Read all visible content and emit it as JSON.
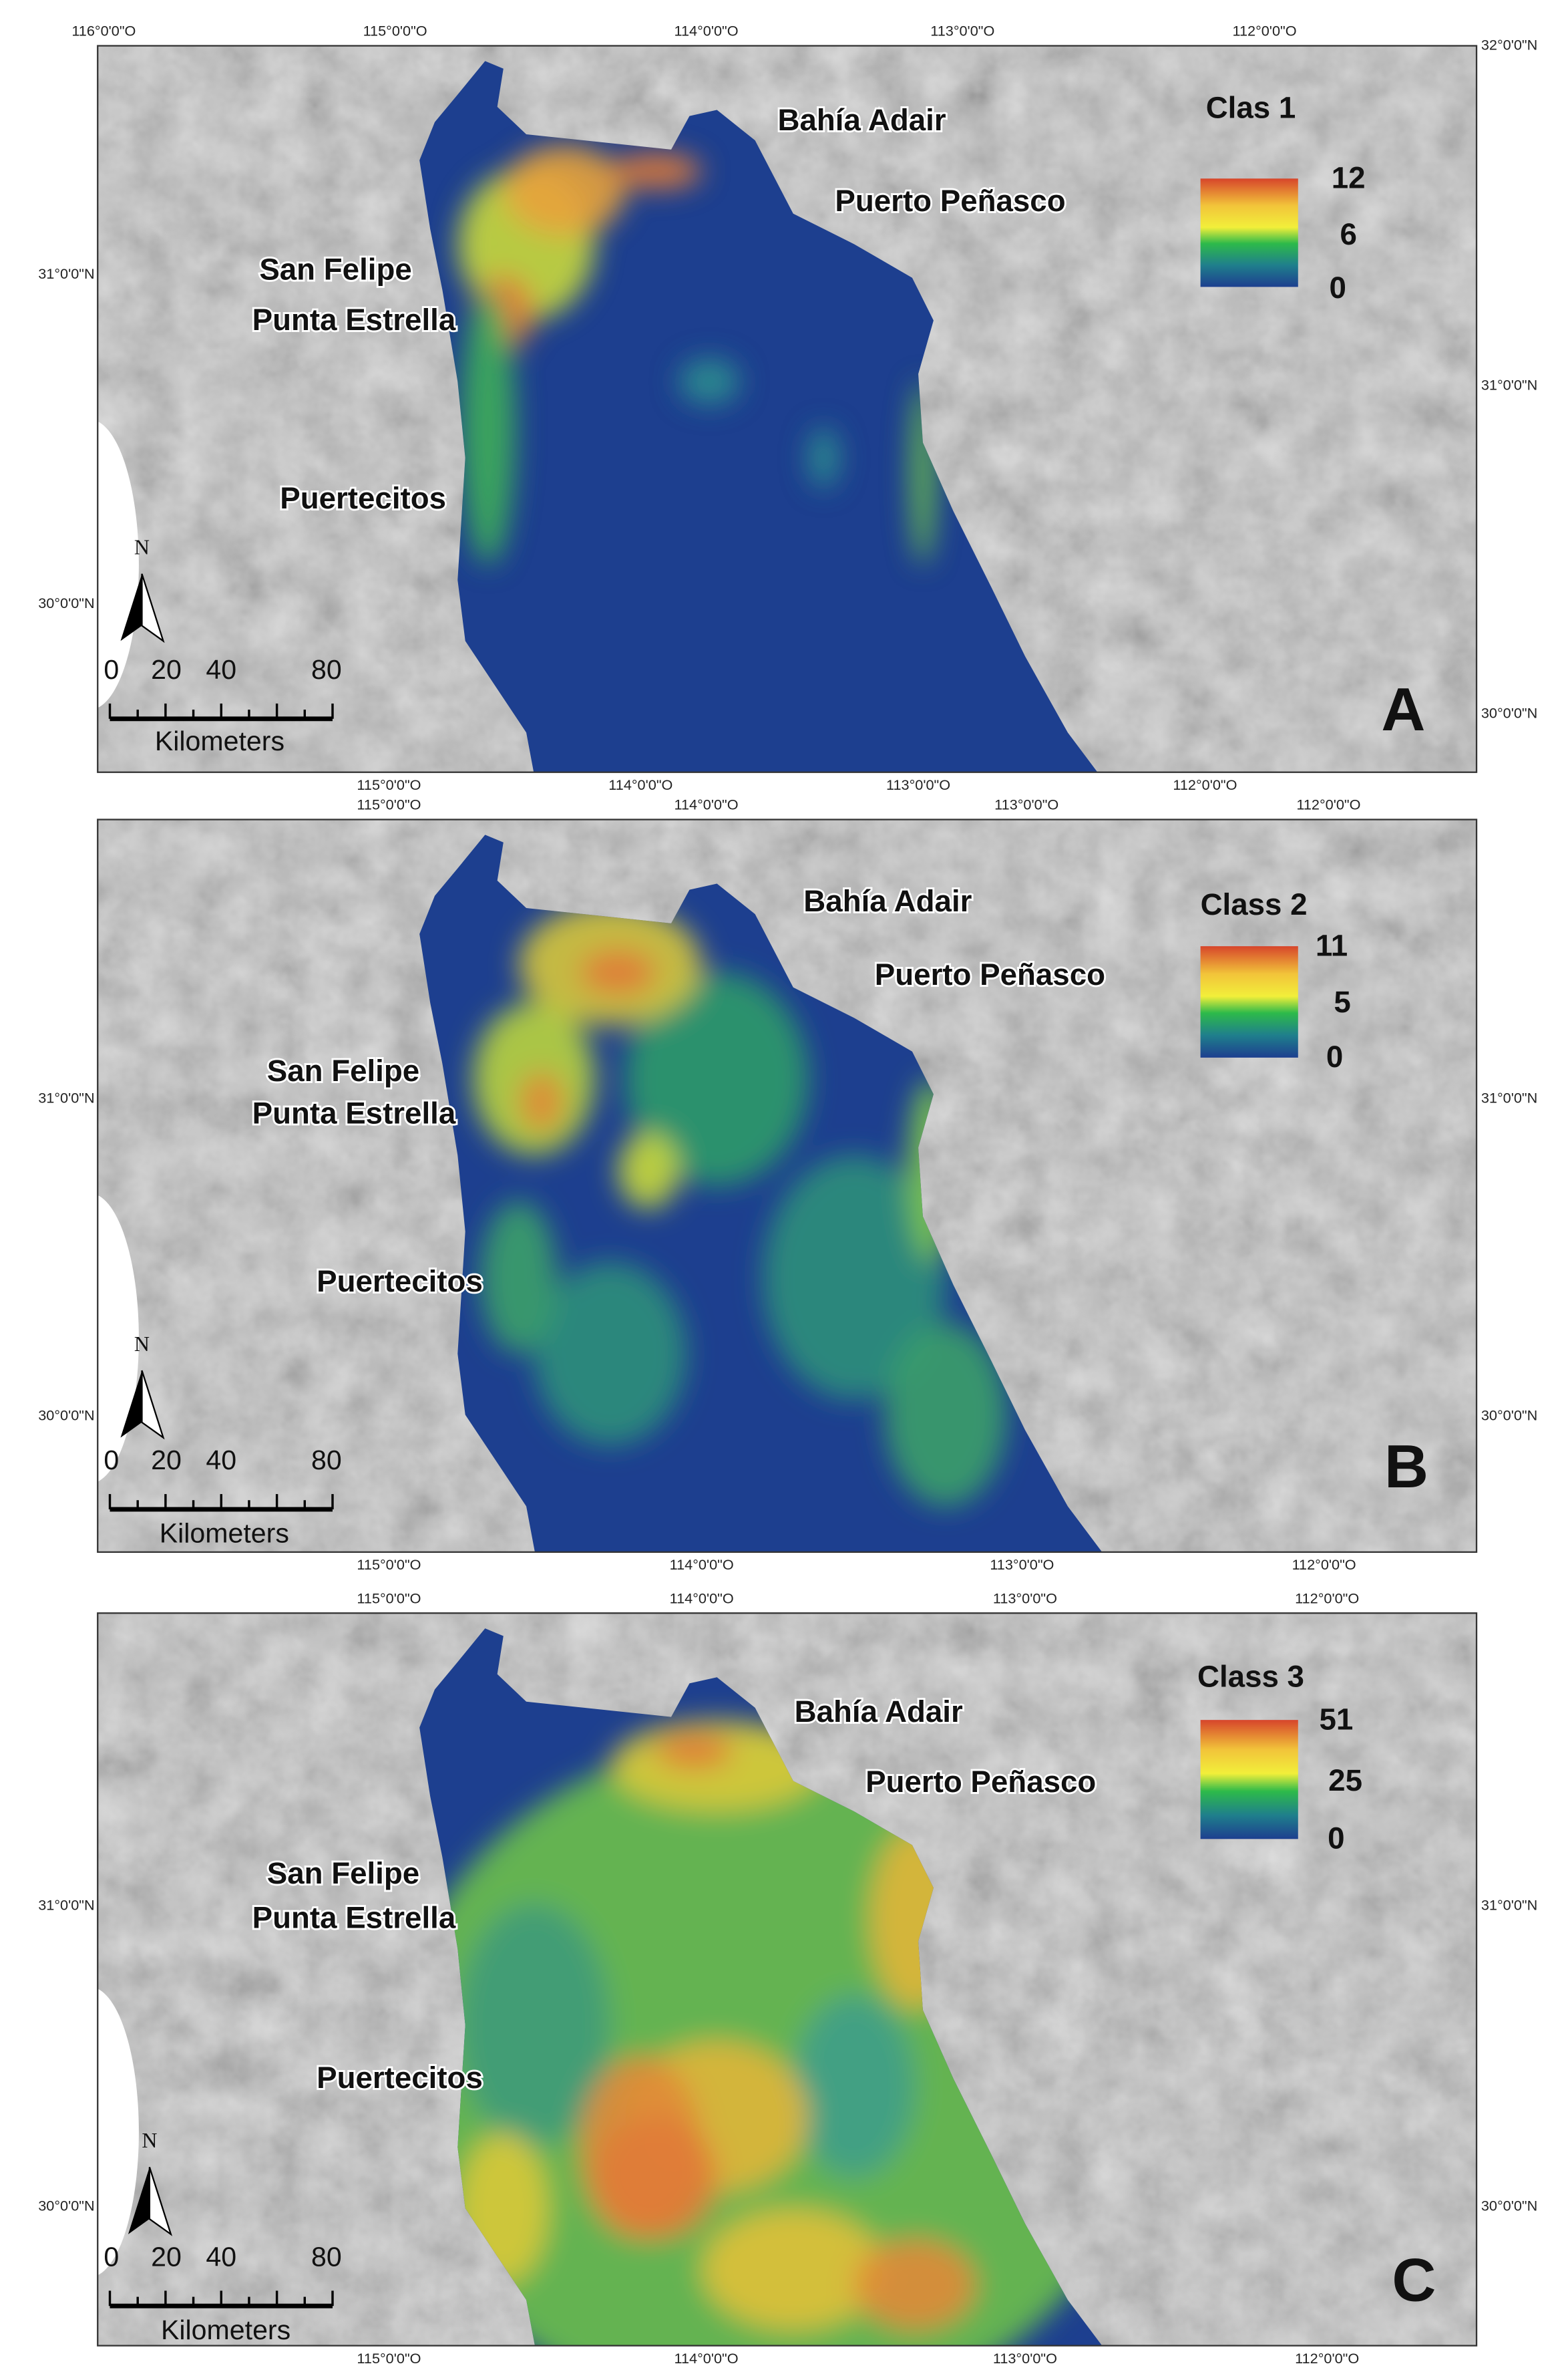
{
  "panels": [
    {
      "letter": "A",
      "legend": {
        "title": "Clas 1",
        "ticks": [
          12,
          6,
          0
        ]
      },
      "places": [
        "Bahía Adair",
        "Puerto Peñasco",
        "San Felipe",
        "Punta Estrella",
        "Puertecitos"
      ],
      "scale": {
        "north": "N",
        "ticks": [
          0,
          20,
          40,
          80
        ],
        "unit": "Kilometers"
      },
      "top_labels": [
        "116°0'0\"O",
        "115°0'0\"O",
        "114°0'0\"O",
        "113°0'0\"O",
        "112°0'0\"O"
      ],
      "bottom_labels": [
        "115°0'0\"O",
        "114°0'0\"O",
        "113°0'0\"O",
        "112°0'0\"O"
      ],
      "left_labels": [
        "31°0'0\"N",
        "30°0'0\"N"
      ],
      "right_labels": [
        "32°0'0\"N",
        "31°0'0\"N",
        "30°0'0\"N"
      ]
    },
    {
      "letter": "B",
      "legend": {
        "title": "Class 2",
        "ticks": [
          11,
          5,
          0
        ]
      },
      "places": [
        "Bahía Adair",
        "Puerto Peñasco",
        "San Felipe",
        "Punta Estrella",
        "Puertecitos"
      ],
      "scale": {
        "north": "N",
        "ticks": [
          0,
          20,
          40,
          80
        ],
        "unit": "Kilometers"
      },
      "top_labels": [
        "115°0'0\"O",
        "114°0'0\"O",
        "113°0'0\"O",
        "112°0'0\"O"
      ],
      "bottom_labels": [
        "115°0'0\"O",
        "114°0'0\"O",
        "113°0'0\"O",
        "112°0'0\"O"
      ],
      "left_labels": [
        "31°0'0\"N",
        "30°0'0\"N"
      ],
      "right_labels": [
        "31°0'0\"N",
        "30°0'0\"N"
      ]
    },
    {
      "letter": "C",
      "legend": {
        "title": "Class 3",
        "ticks": [
          51,
          25,
          0
        ]
      },
      "places": [
        "Bahía Adair",
        "Puerto Peñasco",
        "San Felipe",
        "Punta Estrella",
        "Puertecitos"
      ],
      "scale": {
        "north": "N",
        "ticks": [
          0,
          20,
          40,
          80
        ],
        "unit": "Kilometers"
      },
      "top_labels": [
        "115°0'0\"O",
        "114°0'0\"O",
        "113°0'0\"O",
        "112°0'0\"O"
      ],
      "bottom_labels": [
        "115°0'0\"O",
        "114°0'0\"O",
        "113°0'0\"O",
        "112°0'0\"O"
      ],
      "left_labels": [
        "31°0'0\"N",
        "30°0'0\"N"
      ],
      "right_labels": [
        "31°0'0\"N",
        "30°0'0\"N"
      ]
    }
  ]
}
